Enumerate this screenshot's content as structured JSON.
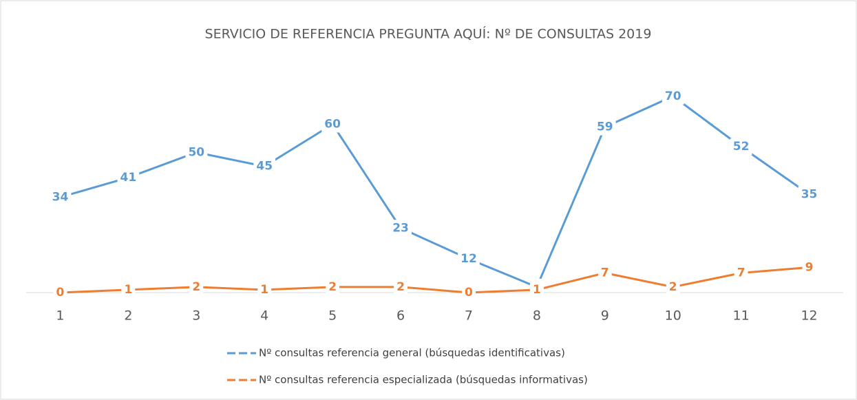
{
  "chart_data": {
    "type": "line",
    "title": "SERVICIO DE REFERENCIA PREGUNTA AQUÍ: Nº DE CONSULTAS 2019",
    "categories": [
      "1",
      "2",
      "3",
      "4",
      "5",
      "6",
      "7",
      "8",
      "9",
      "10",
      "11",
      "12"
    ],
    "series": [
      {
        "name": "Nº consultas referencia general (búsquedas identificativas)",
        "color": "#5b9bd5",
        "values": [
          34,
          41,
          50,
          45,
          60,
          23,
          12,
          2,
          59,
          70,
          52,
          35
        ]
      },
      {
        "name": "Nº consultas referencia especializada (búsquedas informativas)",
        "color": "#ed7d31",
        "values": [
          0,
          1,
          2,
          1,
          2,
          2,
          0,
          1,
          7,
          2,
          7,
          9
        ]
      }
    ],
    "ylim": [
      0,
      80
    ]
  }
}
